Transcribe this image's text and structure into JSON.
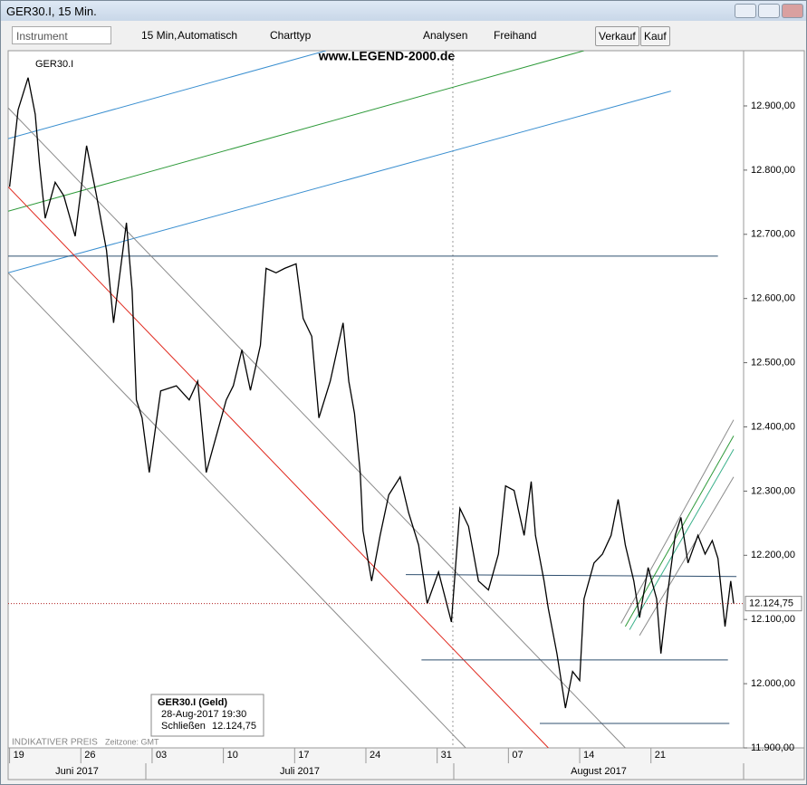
{
  "window": {
    "title": "GER30.I, 15 Min."
  },
  "toolbar": {
    "instrument": "Instrument",
    "interval": "15 Min,",
    "mode": "Automatisch",
    "charttyp": "Charttyp",
    "analysen": "Analysen",
    "freihand": "Freihand",
    "verkauf": "Verkauf",
    "kauf": "Kauf"
  },
  "chart_data": {
    "type": "line",
    "symbol": "GER30.I",
    "watermark": "www.LEGEND-2000.de",
    "x": [
      0,
      0.6,
      1.3,
      1.8,
      2.1,
      2.5,
      3.2,
      3.8,
      4.6,
      5.4,
      6.1,
      6.8,
      7.3,
      8.2,
      8.6,
      8.9,
      9.3,
      9.8,
      10.6,
      11.7,
      12.6,
      13.2,
      13.8,
      14.5,
      15.2,
      15.7,
      16.3,
      16.9,
      17.6,
      18.0,
      18.7,
      19.3,
      20.1,
      20.6,
      21.2,
      21.7,
      22.5,
      23.4,
      23.8,
      24.2,
      24.6,
      24.8,
      25.4,
      26.0,
      26.6,
      27.4,
      28.0,
      28.7,
      29.3,
      30.1,
      31.0,
      31.6,
      32.2,
      32.9,
      33.6,
      34.3,
      34.8,
      35.4,
      36.1,
      36.6,
      36.9,
      37.5,
      37.8,
      38.4,
      39.0,
      39.5,
      40.0,
      40.3,
      41.0,
      41.6,
      42.2,
      42.7,
      43.2,
      43.8,
      44.2,
      44.8,
      45.4,
      45.7,
      46.2,
      46.7,
      47.1,
      47.6,
      48.3,
      48.8,
      49.3,
      49.7,
      50.2,
      50.6,
      50.8
    ],
    "series": [
      {
        "color": "#000000",
        "values": [
          12774,
          12894,
          12944,
          12887,
          12810,
          12725,
          12781,
          12760,
          12697,
          12838,
          12760,
          12675,
          12562,
          12718,
          12612,
          12442,
          12414,
          12329,
          12456,
          12464,
          12442,
          12471,
          12329,
          12386,
          12442,
          12464,
          12520,
          12457,
          12527,
          12647,
          12640,
          12647,
          12654,
          12569,
          12541,
          12414,
          12471,
          12562,
          12471,
          12421,
          12329,
          12238,
          12160,
          12231,
          12294,
          12322,
          12266,
          12216,
          12125,
          12174,
          12096,
          12273,
          12245,
          12160,
          12146,
          12202,
          12308,
          12301,
          12231,
          12315,
          12231,
          12160,
          12117,
          12047,
          11962,
          12019,
          12005,
          12132,
          12188,
          12202,
          12231,
          12287,
          12216,
          12160,
          12103,
          12181,
          12132,
          12047,
          12146,
          12231,
          12259,
          12188,
          12231,
          12202,
          12223,
          12195,
          12089,
          12160,
          12124.75
        ]
      }
    ],
    "xlim": [
      -0.1,
      51.5
    ],
    "ylim": [
      11900,
      12986
    ],
    "xticks": [
      {
        "value": 0,
        "label": "19"
      },
      {
        "value": 5,
        "label": "26"
      },
      {
        "value": 10,
        "label": "03"
      },
      {
        "value": 15,
        "label": "10"
      },
      {
        "value": 20,
        "label": "17"
      },
      {
        "value": 25,
        "label": "24"
      },
      {
        "value": 30,
        "label": "31"
      },
      {
        "value": 35,
        "label": "07"
      },
      {
        "value": 40,
        "label": "14"
      },
      {
        "value": 45,
        "label": "21"
      }
    ],
    "yticks": [
      {
        "value": 12900,
        "label": "12.900,00"
      },
      {
        "value": 12800,
        "label": "12.800,00"
      },
      {
        "value": 12700,
        "label": "12.700,00"
      },
      {
        "value": 12600,
        "label": "12.600,00"
      },
      {
        "value": 12500,
        "label": "12.500,00"
      },
      {
        "value": 12400,
        "label": "12.400,00"
      },
      {
        "value": 12300,
        "label": "12.300,00"
      },
      {
        "value": 12200,
        "label": "12.200,00"
      },
      {
        "value": 12100,
        "label": "12.100,00"
      },
      {
        "value": 12000,
        "label": "12.000,00"
      },
      {
        "value": 11900,
        "label": "11.900,00"
      }
    ],
    "months": [
      "Juni 2017",
      "Juli 2017",
      "August 2017"
    ],
    "last_price": {
      "value": 12124.75,
      "label": "12.124,75"
    },
    "lines": [
      {
        "x1": -0.1,
        "y1": 12849,
        "x2": 22.2,
        "y2": 12986,
        "color": "#3a8fd0"
      },
      {
        "x1": -0.1,
        "y1": 12736,
        "x2": 40.3,
        "y2": 12986,
        "color": "#2e9a3a"
      },
      {
        "x1": -0.1,
        "y1": 12640,
        "x2": 46.4,
        "y2": 12923,
        "color": "#3a8fd0"
      },
      {
        "x1": -0.1,
        "y1": 12666,
        "x2": 49.7,
        "y2": 12666,
        "color": "#2f4f6f"
      },
      {
        "x1": -0.1,
        "y1": 12774,
        "x2": 37.8,
        "y2": 11900,
        "color": "#e0261b"
      },
      {
        "x1": -0.1,
        "y1": 12897,
        "x2": 43.2,
        "y2": 11900,
        "color": "#8a8a8a"
      },
      {
        "x1": -0.1,
        "y1": 12640,
        "x2": 32.0,
        "y2": 11900,
        "color": "#8a8a8a"
      },
      {
        "x1": 27.8,
        "y1": 12170,
        "x2": 51.0,
        "y2": 12167,
        "color": "#2f4f6f"
      },
      {
        "x1": 28.9,
        "y1": 12037,
        "x2": 50.4,
        "y2": 12037,
        "color": "#2f4f6f"
      },
      {
        "x1": 37.2,
        "y1": 11938,
        "x2": 50.5,
        "y2": 11938,
        "color": "#2f4f6f"
      },
      {
        "x1": 42.9,
        "y1": 12094,
        "x2": 50.8,
        "y2": 12411,
        "color": "#8a8a8a"
      },
      {
        "x1": 43.2,
        "y1": 12089,
        "x2": 50.8,
        "y2": 12386,
        "color": "#2e9a3a"
      },
      {
        "x1": 43.5,
        "y1": 12084,
        "x2": 50.8,
        "y2": 12365,
        "color": "#3ab08a"
      },
      {
        "x1": 44.2,
        "y1": 12075,
        "x2": 50.8,
        "y2": 12322,
        "color": "#8a8a8a"
      }
    ],
    "vline": 31.1,
    "info": {
      "title": "GER30.I (Geld)",
      "datetime": "28-Aug-2017 19:30",
      "close_label": "Schließen"
    },
    "footer": {
      "price_type": "INDIKATIVER PREIS",
      "timezone": "Zeitzone: GMT"
    }
  }
}
